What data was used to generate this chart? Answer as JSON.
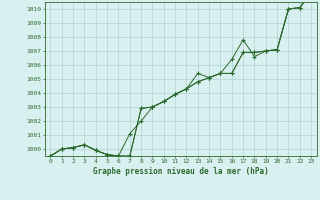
{
  "x": [
    0,
    1,
    2,
    3,
    4,
    5,
    6,
    7,
    8,
    9,
    10,
    11,
    12,
    13,
    14,
    15,
    16,
    17,
    18,
    19,
    20,
    21,
    22,
    23
  ],
  "series1": [
    999.5,
    1000.0,
    1000.1,
    1000.3,
    999.9,
    999.6,
    999.5,
    1001.1,
    1002.0,
    1003.0,
    1003.4,
    1003.9,
    1004.3,
    1004.8,
    1005.1,
    1005.4,
    1006.4,
    1007.8,
    1006.6,
    1007.0,
    1007.1,
    1010.0,
    1010.1,
    1011.2
  ],
  "series2": [
    999.5,
    1000.0,
    1000.1,
    1000.3,
    999.9,
    999.6,
    999.5,
    999.5,
    1002.9,
    1003.0,
    1003.4,
    1003.9,
    1004.3,
    1004.8,
    1005.1,
    1005.4,
    1005.4,
    1006.9,
    1006.9,
    1007.0,
    1007.1,
    1010.0,
    1010.1,
    1011.2
  ],
  "series3": [
    999.5,
    1000.0,
    1000.1,
    1000.3,
    999.9,
    999.6,
    999.5,
    999.5,
    1002.9,
    1003.0,
    1003.4,
    1003.9,
    1004.3,
    1005.4,
    1005.1,
    1005.4,
    1005.4,
    1006.9,
    1006.9,
    1007.0,
    1007.1,
    1010.0,
    1010.1,
    1011.2
  ],
  "line_color": "#2d6a2d",
  "bg_color": "#d8f0f0",
  "grid_color": "#b0d4d4",
  "title": "Graphe pression niveau de la mer (hPa)",
  "ylim_min": 999.5,
  "ylim_max": 1010.5,
  "ytick_min": 1000,
  "ytick_max": 1010,
  "xtick_labels": [
    "0",
    "1",
    "2",
    "3",
    "4",
    "5",
    "6",
    "7",
    "8",
    "9",
    "10",
    "11",
    "12",
    "13",
    "14",
    "15",
    "16",
    "17",
    "18",
    "19",
    "20",
    "21",
    "22",
    "23"
  ]
}
